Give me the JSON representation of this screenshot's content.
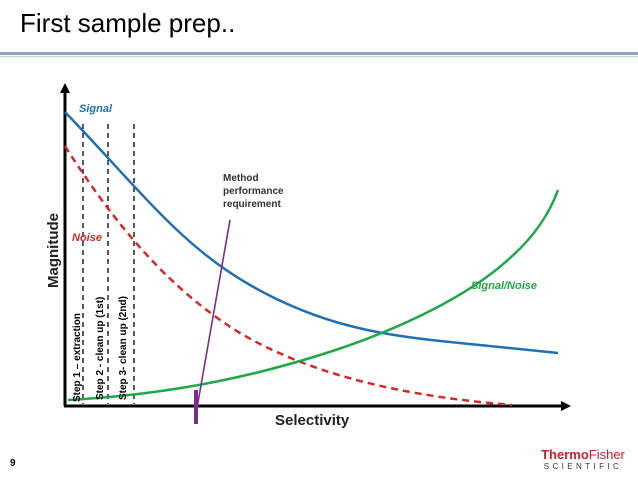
{
  "slide": {
    "title": "First sample prep..",
    "page_number": "9"
  },
  "logo": {
    "brand_part1": "Thermo",
    "brand_part2": "Fisher",
    "sub": "SCIENTIFIC"
  },
  "diagram": {
    "x_axis_label": "Selectivity",
    "y_axis_label": "Magnitude",
    "signal_label": "Signal",
    "noise_label": "Noise",
    "snr_label": "Signal/Noise",
    "method_label_lines": [
      "Method",
      "performance",
      "requirement"
    ],
    "steps": [
      "Step 1 – extraction",
      "Step 2 - clean up (1st)",
      "Step 3- clean up (2nd)"
    ],
    "colors": {
      "signal": "#1f6fb2",
      "noise": "#d9262b",
      "snr": "#1fa84a",
      "method": "#7b2d8e",
      "axis": "#000000"
    }
  }
}
